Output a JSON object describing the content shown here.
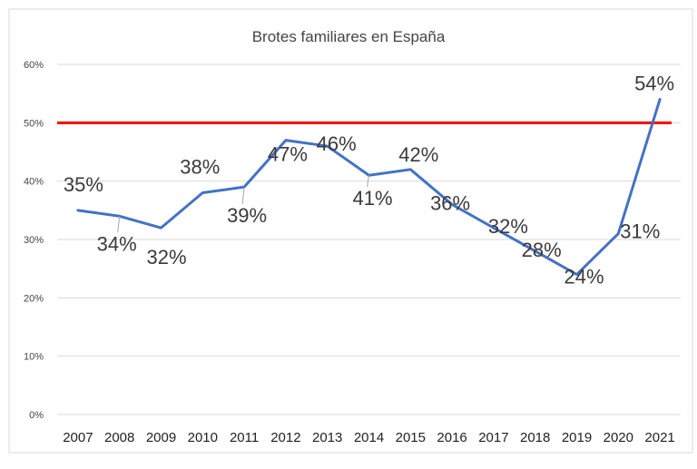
{
  "chart_data": {
    "type": "line",
    "title": "Brotes familiares  en España",
    "xlabel": "",
    "ylabel": "",
    "categories": [
      "2007",
      "2008",
      "2009",
      "2010",
      "2011",
      "2012",
      "2013",
      "2014",
      "2015",
      "2016",
      "2017",
      "2018",
      "2019",
      "2020",
      "2021"
    ],
    "series": [
      {
        "values": [
          35,
          34,
          32,
          38,
          39,
          47,
          46,
          41,
          42,
          36,
          32,
          28,
          24,
          31,
          54
        ],
        "data_labels": [
          "35%",
          "34%",
          "32%",
          "38%",
          "39%",
          "47%",
          "46%",
          "41%",
          "42%",
          "36%",
          "32%",
          "28%",
          "24%",
          "31%",
          "54%"
        ],
        "color": "#4472c4"
      }
    ],
    "reference_line": {
      "value": 50,
      "color": "#ff0000"
    },
    "ylim": [
      0,
      60
    ],
    "yticks": [
      "0%",
      "10%",
      "20%",
      "30%",
      "40%",
      "50%",
      "60%"
    ],
    "grid": true,
    "legend": "none",
    "colors": {
      "grid": "#d9d9d9",
      "border": "#d9d9d9"
    }
  }
}
